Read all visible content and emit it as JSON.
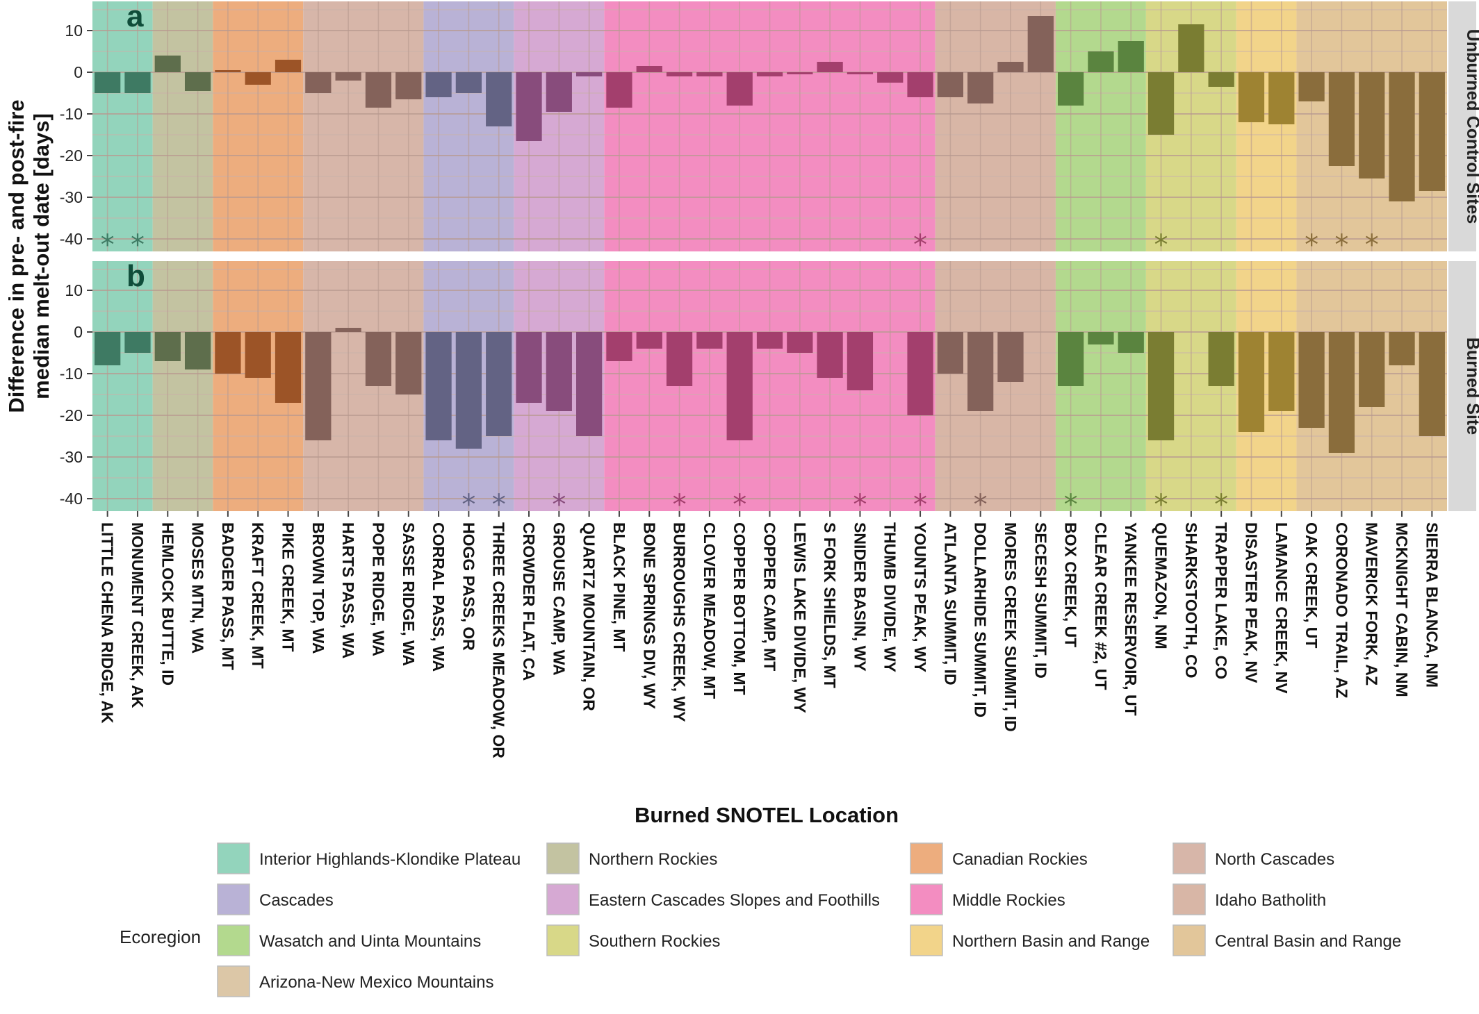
{
  "chart_data": {
    "type": "bar",
    "ylabel": "Difference in pre- and post-fire\nmedian melt-out date [days]",
    "xlabel": "Burned SNOTEL Location",
    "ylim": [
      -43,
      17
    ],
    "yticks": [
      10,
      0,
      -10,
      -20,
      -30,
      -40
    ],
    "categories": [
      "LITTLE CHENA RIDGE, AK",
      "MONUMENT CREEK, AK",
      "HEMLOCK BUTTE, ID",
      "MOSES MTN, WA",
      "BADGER PASS, MT",
      "KRAFT CREEK, MT",
      "PIKE CREEK, MT",
      "BROWN TOP, WA",
      "HARTS PASS, WA",
      "POPE RIDGE, WA",
      "SASSE RIDGE, WA",
      "CORRAL PASS, WA",
      "HOGG PASS, OR",
      "THREE CREEKS MEADOW, OR",
      "CROWDER FLAT, CA",
      "GROUSE CAMP, WA",
      "QUARTZ MOUNTAIN, OR",
      "BLACK PINE, MT",
      "BONE SPRINGS DIV, WY",
      "BURROUGHS CREEK, WY",
      "CLOVER MEADOW, MT",
      "COPPER BOTTOM, MT",
      "COPPER CAMP, MT",
      "LEWIS LAKE DIVIDE, WY",
      "S FORK SHIELDS, MT",
      "SNIDER BASIN, WY",
      "THUMB DIVIDE, WY",
      "YOUNTS PEAK, WY",
      "ATLANTA SUMMIT, ID",
      "DOLLARHIDE SUMMIT, ID",
      "MORES CREEK SUMMIT, ID",
      "SECESH SUMMIT, ID",
      "BOX CREEK, UT",
      "CLEAR CREEK #2, UT",
      "YANKEE RESERVOIR, UT",
      "QUEMAZON, NM",
      "SHARKSTOOTH, CO",
      "TRAPPER LAKE, CO",
      "DISASTER PEAK, NV",
      "LAMANCE CREEK, NV",
      "OAK CREEK, UT",
      "CORONADO TRAIL, AZ",
      "MAVERICK FORK, AZ",
      "MCKNIGHT CABIN, NM",
      "SIERRA BLANCA, NM"
    ],
    "site_ecoregion": [
      0,
      0,
      1,
      1,
      2,
      2,
      2,
      3,
      3,
      3,
      3,
      4,
      4,
      4,
      5,
      5,
      5,
      6,
      6,
      6,
      6,
      6,
      6,
      6,
      6,
      6,
      6,
      6,
      7,
      7,
      7,
      7,
      8,
      8,
      8,
      9,
      9,
      9,
      10,
      10,
      11,
      11,
      11,
      11,
      11
    ],
    "series": [
      {
        "name": "Unburned Control Sites",
        "panel_tag": "a",
        "values": [
          -5,
          -5,
          4,
          -4.5,
          0.5,
          -3,
          3,
          -5,
          -2,
          -8.5,
          -6.5,
          -6,
          -5,
          -13,
          -16.5,
          -9.5,
          -1,
          -8.5,
          1.5,
          -1,
          -1,
          -8,
          -1,
          -0.5,
          2.5,
          -0.5,
          -2.5,
          -6,
          -6,
          -7.5,
          2.5,
          13.5,
          -8,
          5,
          7.5,
          -15,
          11.5,
          -3.5,
          -12,
          -12.5,
          -7,
          -22.5,
          -25.5,
          -31,
          -28.5
        ],
        "significant": [
          0,
          1,
          27,
          35,
          40,
          41,
          42
        ]
      },
      {
        "name": "Burned Site",
        "panel_tag": "b",
        "values": [
          -8,
          -5,
          -7,
          -9,
          -10,
          -11,
          -17,
          -26,
          1,
          -13,
          -15,
          -26,
          -28,
          -25,
          -17,
          -19,
          -25,
          -7,
          -4,
          -13,
          -4,
          -26,
          -4,
          -5,
          -11,
          -14,
          0,
          -20,
          -10,
          -19,
          -12,
          0,
          -13,
          -3,
          -5,
          -26,
          0,
          -13,
          -24,
          -19,
          -23,
          -29,
          -18,
          -8,
          -25
        ],
        "significant": [
          12,
          13,
          15,
          19,
          21,
          25,
          27,
          29,
          32,
          35,
          37
        ]
      }
    ],
    "legend": {
      "title": "Ecoregion",
      "entries": [
        {
          "label": "Interior Highlands-Klondike Plateau",
          "color": "#93d4bc",
          "bar": "#3e7a63"
        },
        {
          "label": "Northern Rockies",
          "color": "#c3c3a1",
          "bar": "#5e6e4c"
        },
        {
          "label": "Canadian Rockies",
          "color": "#edad7e",
          "bar": "#9c5427"
        },
        {
          "label": "North Cascades",
          "color": "#d7b6a9",
          "bar": "#84625a"
        },
        {
          "label": "Cascades",
          "color": "#b9b2d6",
          "bar": "#636384"
        },
        {
          "label": "Eastern Cascades Slopes and Foothills",
          "color": "#d6a9d3",
          "bar": "#884c7c"
        },
        {
          "label": "Middle Rockies",
          "color": "#f38dc1",
          "bar": "#a33f6d"
        },
        {
          "label": "Idaho Batholith",
          "color": "#d8b6a6",
          "bar": "#84625a"
        },
        {
          "label": "Wasatch and Uinta Mountains",
          "color": "#b3d98e",
          "bar": "#5a843f"
        },
        {
          "label": "Southern Rockies",
          "color": "#d8d888",
          "bar": "#7a7d32"
        },
        {
          "label": "Northern Basin and Range",
          "color": "#f2d48a",
          "bar": "#9e8332"
        },
        {
          "label": "Central Basin and Range",
          "color": "#e2c69a",
          "bar": "#8a6d3c"
        },
        {
          "label": "Arizona-New Mexico Mountains",
          "color": "#dcc7a7",
          "bar": "#8a6d3c"
        }
      ]
    }
  }
}
